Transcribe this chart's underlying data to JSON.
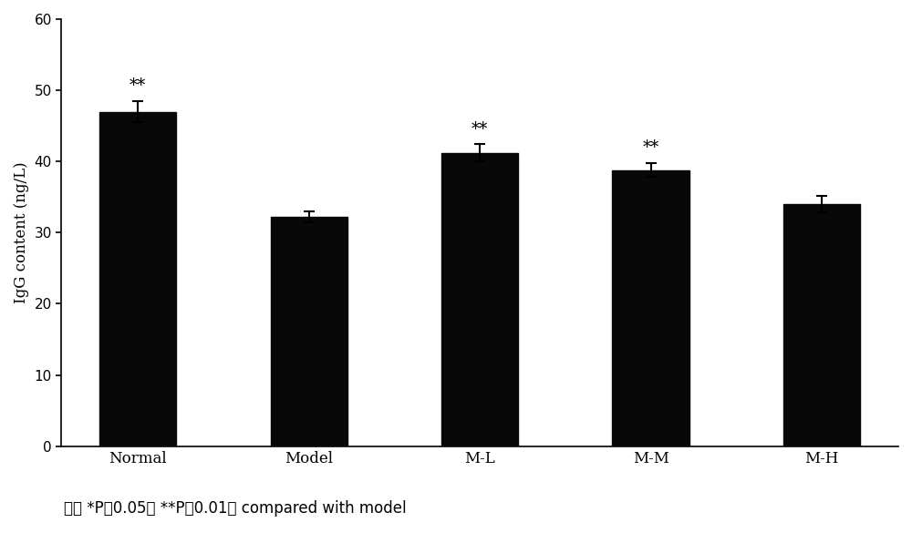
{
  "categories": [
    "Normal",
    "Model",
    "M-L",
    "M-M",
    "M-H"
  ],
  "values": [
    47.0,
    32.2,
    41.2,
    38.8,
    34.0
  ],
  "errors": [
    1.5,
    0.8,
    1.2,
    1.0,
    1.2
  ],
  "significance": [
    "**",
    "",
    "**",
    "**",
    ""
  ],
  "bar_color": "#080808",
  "bar_width": 0.45,
  "ylabel": "IgG content (ng/L)",
  "ylim": [
    0,
    60
  ],
  "yticks": [
    0,
    10,
    20,
    30,
    40,
    50,
    60
  ],
  "xlabel_fontsize": 12,
  "ylabel_fontsize": 12,
  "tick_fontsize": 11,
  "sig_fontsize": 13,
  "annotation_zh": "注：",
  "annotation_en": " *P＜0.05， **P＜0.01， compared with model",
  "annotation_fontsize": 12,
  "background_color": "#ffffff",
  "figure_width": 10.0,
  "figure_height": 5.85
}
